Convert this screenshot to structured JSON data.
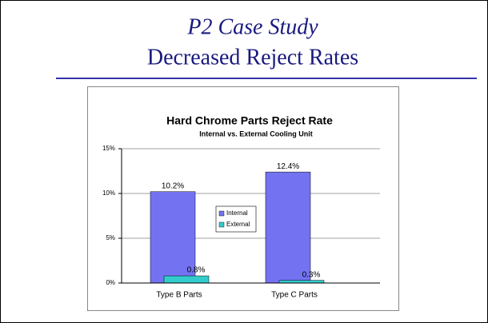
{
  "slide": {
    "title": "P2 Case Study",
    "subtitle": "Decreased Reject Rates"
  },
  "chart_data": {
    "type": "bar",
    "title": "Hard Chrome Parts Reject Rate",
    "subtitle": "Internal vs. External Cooling Unit",
    "categories": [
      "Type B Parts",
      "Type C Parts"
    ],
    "series": [
      {
        "name": "Internal",
        "color": "#7373f2",
        "values": [
          10.2,
          12.4
        ],
        "value_labels": [
          "10.2%",
          "12.4%"
        ]
      },
      {
        "name": "External",
        "color": "#33cccc",
        "values": [
          0.8,
          0.3
        ],
        "value_labels": [
          "0.8%",
          "0.3%"
        ]
      }
    ],
    "ylim": [
      0,
      15
    ],
    "yticks": [
      {
        "value": 0,
        "label": "0%"
      },
      {
        "value": 5,
        "label": "5%"
      },
      {
        "value": 10,
        "label": "10%"
      },
      {
        "value": 15,
        "label": "15%"
      }
    ],
    "grid": true,
    "legend": "center"
  }
}
